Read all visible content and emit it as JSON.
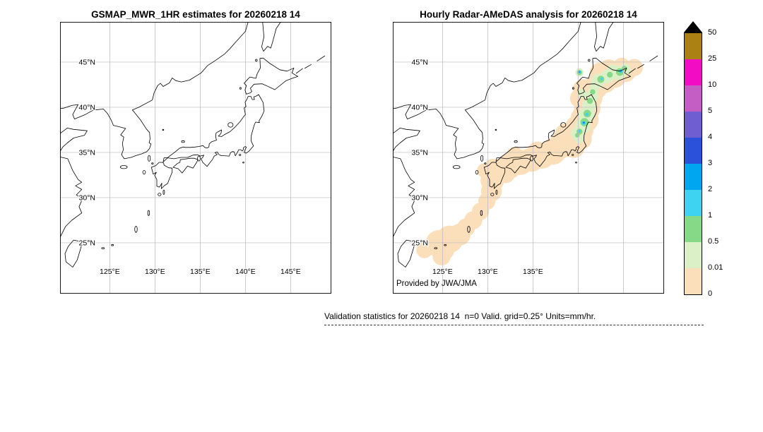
{
  "left_map": {
    "title": "GSMAP_MWR_1HR estimates for 20260218 14"
  },
  "right_map": {
    "title": "Hourly Radar-AMeDAS analysis for 20260218 14",
    "credit": "Provided by JWA/JMA"
  },
  "axes": {
    "lat_ticks": [
      {
        "label": "45°N",
        "value": 45
      },
      {
        "label": "40°N",
        "value": 40
      },
      {
        "label": "35°N",
        "value": 35
      },
      {
        "label": "30°N",
        "value": 30
      },
      {
        "label": "25°N",
        "value": 25
      }
    ],
    "lon_ticks_left": [
      {
        "label": "125°E",
        "value": 125
      },
      {
        "label": "130°E",
        "value": 130
      },
      {
        "label": "135°E",
        "value": 135
      },
      {
        "label": "140°E",
        "value": 140
      },
      {
        "label": "145°E",
        "value": 145
      }
    ],
    "lon_ticks_right": [
      {
        "label": "125°E",
        "value": 125
      },
      {
        "label": "130°E",
        "value": 130
      },
      {
        "label": "135°E",
        "value": 135
      }
    ]
  },
  "colorbar": {
    "tick_labels_top_to_bottom": [
      "50",
      "25",
      "10",
      "5",
      "4",
      "3",
      "2",
      "1",
      "0.5",
      "0.01",
      "0"
    ],
    "segment_colors_top_to_bottom": [
      "#ab8113",
      "#f20cc4",
      "#c45ec4",
      "#6f5ed2",
      "#2b50d9",
      "#00a6f0",
      "#3fd3f2",
      "#86d986",
      "#dcf0c8",
      "#fbdfbb"
    ],
    "overflow_color": "#000000"
  },
  "caption": "Validation statistics for 20260218 14  n=0 Valid. grid=0.25° Units=mm/hr.",
  "chart_data": {
    "type": "heatmap",
    "subtype": "geographic precipitation shading, two panels with shared color scale",
    "lon_range": [
      119.5,
      149.5
    ],
    "lat_range": [
      19.5,
      49.5
    ],
    "grid_deg": 5,
    "scale_boundaries_mm_hr": [
      0,
      0.01,
      0.5,
      1,
      2,
      3,
      4,
      5,
      10,
      25,
      50
    ],
    "level_colors_low_to_high": [
      "#fbdfbb",
      "#dcf0c8",
      "#86d986",
      "#3fd3f2",
      "#00a6f0",
      "#2b50d9",
      "#6f5ed2",
      "#c45ec4",
      "#f20cc4",
      "#ab8113"
    ],
    "overflow_color": "#000000",
    "panels": [
      {
        "title": "GSMAP_MWR_1HR estimates for 20260218 14",
        "shading": "none (no precipitation estimated)"
      },
      {
        "title": "Hourly Radar-AMeDAS analysis for 20260218 14",
        "shading": "precipitation",
        "cells_lon_lat_radiusdeg_level": [
          [
            124.6,
            24.9,
            1.5,
            0
          ],
          [
            125.8,
            25.4,
            1.5,
            0
          ],
          [
            125.2,
            24.2,
            1.1,
            0
          ],
          [
            123.6,
            24.6,
            0.9,
            0
          ],
          [
            123.0,
            24.2,
            0.9,
            0
          ],
          [
            124.9,
            23.5,
            1.0,
            0
          ],
          [
            126.9,
            25.9,
            1.2,
            0
          ],
          [
            127.6,
            26.7,
            1.0,
            0
          ],
          [
            128.4,
            27.5,
            1.0,
            0
          ],
          [
            129.2,
            28.5,
            0.95,
            0
          ],
          [
            129.9,
            29.6,
            0.95,
            0
          ],
          [
            130.4,
            30.7,
            1.15,
            0
          ],
          [
            130.5,
            31.9,
            1.3,
            0
          ],
          [
            131.3,
            32.9,
            1.35,
            0
          ],
          [
            130.6,
            33.3,
            1.0,
            0
          ],
          [
            129.6,
            33.0,
            0.8,
            0
          ],
          [
            132.0,
            32.6,
            1.0,
            0
          ],
          [
            132.4,
            33.5,
            1.4,
            0
          ],
          [
            133.6,
            33.9,
            1.4,
            0
          ],
          [
            133.0,
            34.6,
            1.0,
            0
          ],
          [
            134.8,
            34.2,
            1.35,
            0
          ],
          [
            136.0,
            34.6,
            1.4,
            0
          ],
          [
            135.5,
            35.1,
            1.1,
            0
          ],
          [
            137.2,
            35.1,
            1.45,
            0
          ],
          [
            138.3,
            35.9,
            1.5,
            0
          ],
          [
            139.3,
            36.7,
            1.55,
            0
          ],
          [
            138.6,
            37.0,
            1.2,
            0
          ],
          [
            139.5,
            35.6,
            1.2,
            0
          ],
          [
            140.3,
            36.5,
            1.2,
            0
          ],
          [
            140.1,
            37.6,
            1.6,
            0
          ],
          [
            140.7,
            38.7,
            1.55,
            0
          ],
          [
            141.0,
            39.9,
            1.45,
            0
          ],
          [
            140.2,
            41.0,
            1.1,
            0
          ],
          [
            141.3,
            41.1,
            1.4,
            0
          ],
          [
            140.5,
            42.0,
            1.1,
            0
          ],
          [
            141.9,
            42.2,
            1.35,
            0
          ],
          [
            142.9,
            42.9,
            1.35,
            0
          ],
          [
            142.4,
            43.8,
            1.15,
            0
          ],
          [
            144.0,
            43.5,
            1.35,
            0
          ],
          [
            143.4,
            44.2,
            1.1,
            0
          ],
          [
            145.2,
            44.0,
            1.2,
            0
          ],
          [
            144.8,
            44.6,
            0.9,
            0
          ],
          [
            146.2,
            44.4,
            0.95,
            0
          ],
          [
            140.5,
            37.9,
            0.85,
            1
          ],
          [
            140.9,
            39.1,
            0.9,
            1
          ],
          [
            141.2,
            40.2,
            0.75,
            1
          ],
          [
            141.5,
            41.2,
            0.7,
            1
          ],
          [
            142.2,
            42.9,
            0.8,
            1
          ],
          [
            143.2,
            43.4,
            0.75,
            1
          ],
          [
            144.4,
            43.8,
            0.8,
            1
          ],
          [
            145.2,
            44.2,
            0.6,
            1
          ],
          [
            139.9,
            37.1,
            0.7,
            1
          ],
          [
            140.1,
            36.5,
            0.5,
            1
          ],
          [
            141.7,
            42.0,
            0.55,
            1
          ],
          [
            140.4,
            41.5,
            0.5,
            1
          ],
          [
            143.8,
            44.15,
            0.6,
            1
          ],
          [
            140.15,
            43.85,
            0.45,
            1
          ],
          [
            140.7,
            38.35,
            0.45,
            2
          ],
          [
            141.0,
            39.3,
            0.42,
            2
          ],
          [
            141.3,
            40.7,
            0.33,
            2
          ],
          [
            142.5,
            43.1,
            0.4,
            2
          ],
          [
            144.6,
            43.9,
            0.42,
            2
          ],
          [
            140.15,
            37.3,
            0.33,
            2
          ],
          [
            145.1,
            44.3,
            0.3,
            2
          ],
          [
            141.6,
            41.7,
            0.3,
            2
          ],
          [
            143.5,
            43.6,
            0.32,
            2
          ],
          [
            140.15,
            43.85,
            0.28,
            2
          ],
          [
            139.9,
            36.9,
            0.25,
            2
          ],
          [
            140.6,
            38.25,
            0.22,
            3
          ],
          [
            140.95,
            39.2,
            0.17,
            3
          ],
          [
            144.7,
            44.0,
            0.2,
            3
          ],
          [
            140.1,
            37.35,
            0.16,
            3
          ],
          [
            140.15,
            43.9,
            0.17,
            3
          ],
          [
            142.6,
            43.15,
            0.14,
            3
          ],
          [
            140.62,
            38.3,
            0.12,
            4
          ],
          [
            144.72,
            44.02,
            0.1,
            4
          ],
          [
            140.15,
            43.9,
            0.09,
            4
          ],
          [
            140.63,
            38.32,
            0.06,
            5
          ]
        ]
      }
    ]
  }
}
